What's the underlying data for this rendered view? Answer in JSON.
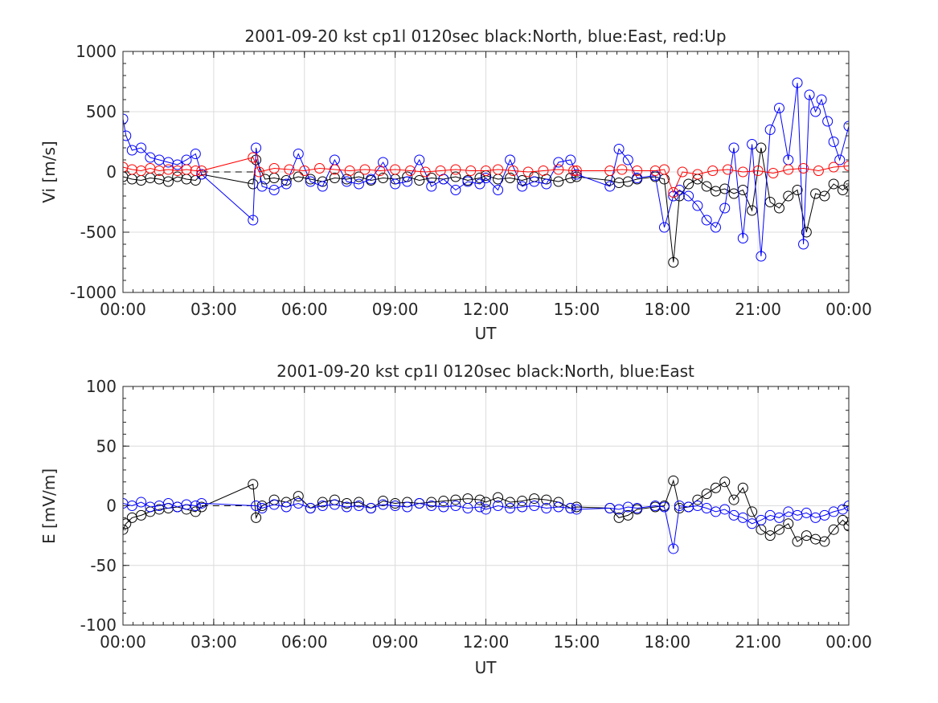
{
  "chart_data": [
    {
      "type": "line",
      "title": "2001-09-20 kst cp1l 0120sec black:North, blue:East, red:Up",
      "xlabel": "UT",
      "ylabel": "Vi [m/s]",
      "xlim": [
        0,
        24
      ],
      "ylim": [
        -1000,
        1000
      ],
      "xticks": [
        "00:00",
        "03:00",
        "06:00",
        "09:00",
        "12:00",
        "15:00",
        "18:00",
        "21:00",
        "00:00"
      ],
      "yticks": [
        -1000,
        -500,
        0,
        500,
        1000
      ],
      "grid": true,
      "colors": {
        "North": "#000000",
        "East": "#0000ff",
        "Up": "#ff0000"
      },
      "series": [
        {
          "key": "North",
          "x": [
            0.0,
            0.3,
            0.6,
            0.9,
            1.2,
            1.5,
            1.8,
            2.1,
            2.4,
            2.6,
            4.3,
            4.4,
            4.7,
            5.0,
            5.4,
            5.8,
            6.2,
            6.6,
            7.0,
            7.4,
            7.8,
            8.2,
            8.6,
            9.0,
            9.4,
            9.8,
            10.2,
            10.6,
            11.0,
            11.4,
            11.8,
            12.0,
            12.4,
            12.8,
            13.2,
            13.6,
            14.0,
            14.4,
            14.8,
            15.0,
            16.1,
            16.4,
            16.7,
            17.0,
            17.6,
            17.9,
            18.2,
            18.4,
            18.7,
            19.0,
            19.3,
            19.6,
            19.9,
            20.2,
            20.5,
            20.8,
            21.1,
            21.4,
            21.7,
            22.0,
            22.3,
            22.6,
            22.9,
            23.2,
            23.5,
            23.8,
            24.0
          ],
          "values": [
            -40,
            -60,
            -70,
            -50,
            -60,
            -80,
            -40,
            -60,
            -70,
            -20,
            -100,
            100,
            -60,
            -50,
            -70,
            -40,
            -60,
            -80,
            -50,
            -60,
            -40,
            -70,
            -50,
            -60,
            -40,
            -70,
            -50,
            -60,
            -40,
            -70,
            -50,
            -30,
            -60,
            -50,
            -70,
            -40,
            -60,
            -80,
            -50,
            -40,
            -70,
            -90,
            -80,
            -60,
            -40,
            -60,
            -750,
            -200,
            -100,
            -60,
            -120,
            -160,
            -140,
            -180,
            -150,
            -320,
            200,
            -250,
            -300,
            -200,
            -150,
            -500,
            -180,
            -200,
            -100,
            -150,
            -110
          ]
        },
        {
          "key": "East",
          "x": [
            0.0,
            0.1,
            0.3,
            0.6,
            0.9,
            1.2,
            1.5,
            1.8,
            2.1,
            2.4,
            2.6,
            4.3,
            4.4,
            4.6,
            5.0,
            5.4,
            5.8,
            6.2,
            6.6,
            7.0,
            7.4,
            7.8,
            8.2,
            8.6,
            9.0,
            9.4,
            9.8,
            10.2,
            10.6,
            11.0,
            11.4,
            11.8,
            12.0,
            12.4,
            12.8,
            13.2,
            13.6,
            14.0,
            14.4,
            14.8,
            15.0,
            16.1,
            16.4,
            16.7,
            17.0,
            17.6,
            17.9,
            18.2,
            18.4,
            18.7,
            19.0,
            19.3,
            19.6,
            19.9,
            20.2,
            20.5,
            20.8,
            21.1,
            21.4,
            21.7,
            22.0,
            22.3,
            22.5,
            22.7,
            22.9,
            23.1,
            23.3,
            23.5,
            23.7,
            24.0
          ],
          "values": [
            440,
            300,
            180,
            200,
            120,
            100,
            80,
            60,
            100,
            150,
            -20,
            -400,
            200,
            -120,
            -150,
            -100,
            150,
            -80,
            -120,
            100,
            -80,
            -100,
            -60,
            80,
            -100,
            -80,
            100,
            -120,
            -60,
            -150,
            -80,
            -100,
            -50,
            -150,
            100,
            -120,
            -80,
            -100,
            80,
            100,
            -20,
            -120,
            190,
            100,
            -50,
            -30,
            -460,
            -200,
            -150,
            -200,
            -280,
            -400,
            -460,
            -300,
            200,
            -550,
            230,
            -700,
            350,
            530,
            100,
            740,
            -600,
            640,
            500,
            600,
            420,
            250,
            100,
            380
          ]
        },
        {
          "key": "Up",
          "x": [
            0.0,
            0.3,
            0.6,
            0.9,
            1.2,
            1.5,
            1.8,
            2.1,
            2.4,
            2.6,
            4.3,
            4.5,
            5.0,
            5.5,
            6.0,
            6.5,
            7.0,
            7.5,
            8.0,
            8.5,
            9.0,
            9.5,
            10.0,
            10.5,
            11.0,
            11.5,
            12.0,
            12.4,
            12.9,
            13.4,
            13.9,
            14.4,
            14.9,
            15.0,
            16.1,
            16.5,
            17.0,
            17.6,
            17.9,
            18.2,
            18.5,
            19.0,
            19.5,
            20.0,
            20.5,
            21.0,
            21.5,
            22.0,
            22.5,
            23.0,
            23.5,
            24.0
          ],
          "values": [
            40,
            20,
            10,
            30,
            10,
            20,
            10,
            20,
            10,
            10,
            120,
            0,
            30,
            20,
            10,
            30,
            20,
            10,
            20,
            10,
            20,
            10,
            0,
            10,
            20,
            10,
            10,
            20,
            10,
            0,
            10,
            20,
            10,
            10,
            10,
            20,
            10,
            10,
            20,
            -170,
            0,
            -20,
            10,
            20,
            0,
            10,
            -10,
            20,
            30,
            10,
            40,
            50
          ]
        }
      ]
    },
    {
      "type": "line",
      "title": "2001-09-20 kst cp1l 0120sec black:North, blue:East",
      "xlabel": "UT",
      "ylabel": "E [mV/m]",
      "xlim": [
        0,
        24
      ],
      "ylim": [
        -100,
        100
      ],
      "xticks": [
        "00:00",
        "03:00",
        "06:00",
        "09:00",
        "12:00",
        "15:00",
        "18:00",
        "21:00",
        "00:00"
      ],
      "yticks": [
        -100,
        -50,
        0,
        50,
        100
      ],
      "grid": true,
      "colors": {
        "North": "#000000",
        "East": "#0000ff"
      },
      "series": [
        {
          "key": "North",
          "x": [
            0.0,
            0.1,
            0.3,
            0.6,
            0.9,
            1.2,
            1.5,
            1.8,
            2.1,
            2.4,
            2.6,
            4.3,
            4.4,
            4.6,
            5.0,
            5.4,
            5.8,
            6.2,
            6.6,
            7.0,
            7.4,
            7.8,
            8.2,
            8.6,
            9.0,
            9.4,
            9.8,
            10.2,
            10.6,
            11.0,
            11.4,
            11.8,
            12.0,
            12.4,
            12.8,
            13.2,
            13.6,
            14.0,
            14.4,
            14.8,
            15.0,
            16.1,
            16.4,
            16.7,
            17.0,
            17.6,
            17.9,
            18.2,
            18.4,
            18.7,
            19.0,
            19.3,
            19.6,
            19.9,
            20.2,
            20.5,
            20.8,
            21.1,
            21.4,
            21.7,
            22.0,
            22.3,
            22.6,
            22.9,
            23.2,
            23.5,
            23.8,
            24.0
          ],
          "values": [
            -20,
            -15,
            -10,
            -8,
            -5,
            -3,
            -2,
            -1,
            -3,
            -5,
            -1,
            18,
            -10,
            0,
            5,
            3,
            8,
            -2,
            3,
            5,
            2,
            3,
            -2,
            4,
            2,
            3,
            2,
            3,
            4,
            5,
            6,
            5,
            3,
            7,
            3,
            4,
            6,
            5,
            3,
            -2,
            -1,
            -2,
            -10,
            -8,
            -3,
            -1,
            0,
            21,
            -2,
            -1,
            5,
            10,
            15,
            20,
            5,
            15,
            -5,
            -20,
            -25,
            -20,
            -15,
            -30,
            -25,
            -28,
            -30,
            -20,
            -12,
            -17
          ]
        },
        {
          "key": "East",
          "x": [
            0.0,
            0.3,
            0.6,
            0.9,
            1.2,
            1.5,
            1.8,
            2.1,
            2.4,
            2.6,
            4.4,
            4.6,
            5.0,
            5.4,
            5.8,
            6.2,
            6.6,
            7.0,
            7.4,
            7.8,
            8.2,
            8.6,
            9.0,
            9.4,
            9.8,
            10.2,
            10.6,
            11.0,
            11.4,
            11.8,
            12.0,
            12.4,
            12.8,
            13.2,
            13.6,
            14.0,
            14.4,
            14.8,
            15.0,
            16.1,
            16.4,
            16.7,
            17.0,
            17.6,
            17.9,
            18.2,
            18.4,
            18.7,
            19.0,
            19.3,
            19.6,
            19.9,
            20.2,
            20.5,
            20.8,
            21.1,
            21.4,
            21.7,
            22.0,
            22.3,
            22.6,
            22.9,
            23.2,
            23.5,
            23.8,
            24.0
          ],
          "values": [
            2,
            0,
            3,
            -1,
            0,
            2,
            -1,
            1,
            0,
            2,
            0,
            -2,
            1,
            -1,
            2,
            -2,
            0,
            1,
            -1,
            0,
            -2,
            1,
            0,
            -1,
            2,
            0,
            -1,
            0,
            -2,
            -1,
            -3,
            0,
            -2,
            -1,
            0,
            -2,
            -1,
            -2,
            -3,
            -2,
            -3,
            -1,
            -2,
            0,
            -1,
            -36,
            0,
            -1,
            0,
            -2,
            -5,
            -3,
            -8,
            -10,
            -15,
            -12,
            -8,
            -10,
            -5,
            -8,
            -6,
            -10,
            -8,
            -5,
            -3,
            0
          ]
        }
      ]
    }
  ]
}
